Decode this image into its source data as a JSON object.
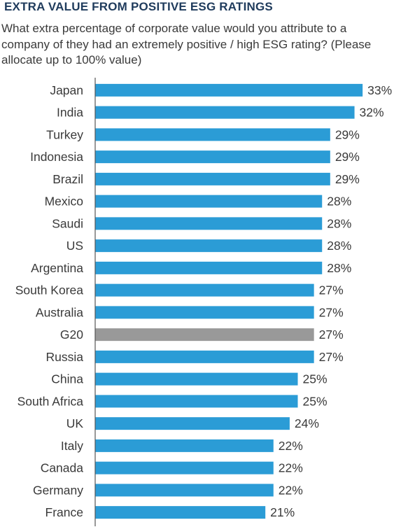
{
  "title": "EXTRA VALUE FROM POSITIVE ESG RATINGS",
  "subtitle": "What extra percentage of corporate value would you attribute to a company of they had an extremely positive / high ESG rating? (Please allocate up to 100% value)",
  "colors": {
    "bar": "#2b9cd6",
    "highlight": "#999999",
    "axis": "#555555",
    "text": "#3a3a3a",
    "title": "#1f3b5c"
  },
  "chart_data": {
    "type": "bar",
    "orientation": "horizontal",
    "title": "EXTRA VALUE FROM POSITIVE ESG RATINGS",
    "categories": [
      "Japan",
      "India",
      "Turkey",
      "Indonesia",
      "Brazil",
      "Mexico",
      "Saudi",
      "US",
      "Argentina",
      "South Korea",
      "Australia",
      "G20",
      "Russia",
      "China",
      "South Africa",
      "UK",
      "Italy",
      "Canada",
      "Germany",
      "France"
    ],
    "values": [
      33,
      32,
      29,
      29,
      29,
      28,
      28,
      28,
      28,
      27,
      27,
      27,
      27,
      25,
      25,
      24,
      22,
      22,
      22,
      21
    ],
    "value_labels": [
      "33%",
      "32%",
      "29%",
      "29%",
      "29%",
      "28%",
      "28%",
      "28%",
      "28%",
      "27%",
      "27%",
      "27%",
      "27%",
      "25%",
      "25%",
      "24%",
      "22%",
      "22%",
      "22%",
      "21%"
    ],
    "highlight_category": "G20",
    "unit": "%",
    "xlim": [
      0,
      33
    ],
    "grid": false
  }
}
